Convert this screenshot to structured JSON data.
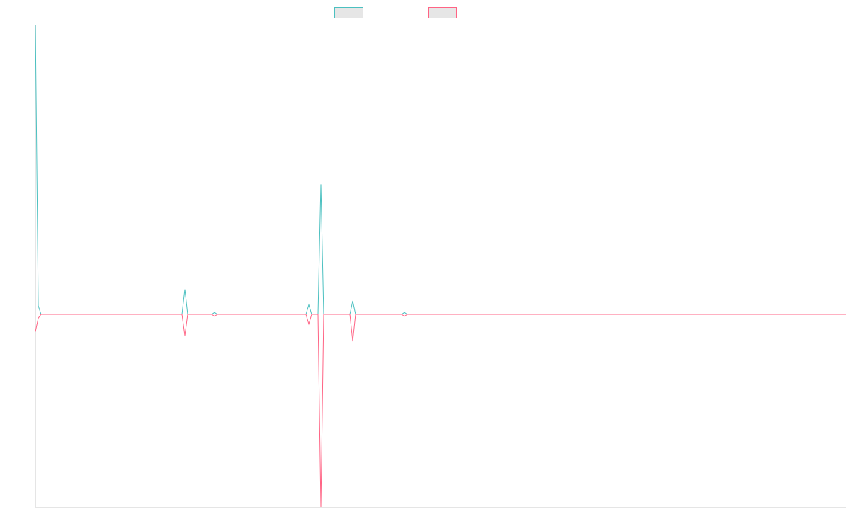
{
  "chart_data": {
    "type": "line",
    "x": [
      0,
      4,
      8,
      207,
      211,
      215,
      249,
      253,
      257,
      382,
      386,
      390,
      399,
      403,
      407,
      444,
      448,
      452,
      517,
      521,
      525,
      1145
    ],
    "series": [
      {
        "color": "#4bc0c0",
        "values": [
          3.0,
          0.09,
          0,
          0,
          0.26,
          0,
          0,
          0.02,
          0,
          0,
          0.1,
          0,
          0,
          1.35,
          0,
          0,
          0.14,
          0,
          0,
          0.02,
          0,
          0
        ]
      },
      {
        "color": "#ff6384",
        "values": [
          -0.18,
          -0.04,
          0,
          0,
          -0.22,
          0,
          0,
          -0.02,
          0,
          0,
          -0.1,
          0,
          0,
          -2.0,
          0,
          0,
          -0.28,
          0,
          0,
          -0.02,
          0,
          0
        ]
      }
    ],
    "xlim": [
      0,
      1145
    ],
    "ylim": [
      -2,
      3
    ],
    "legend": "top"
  }
}
